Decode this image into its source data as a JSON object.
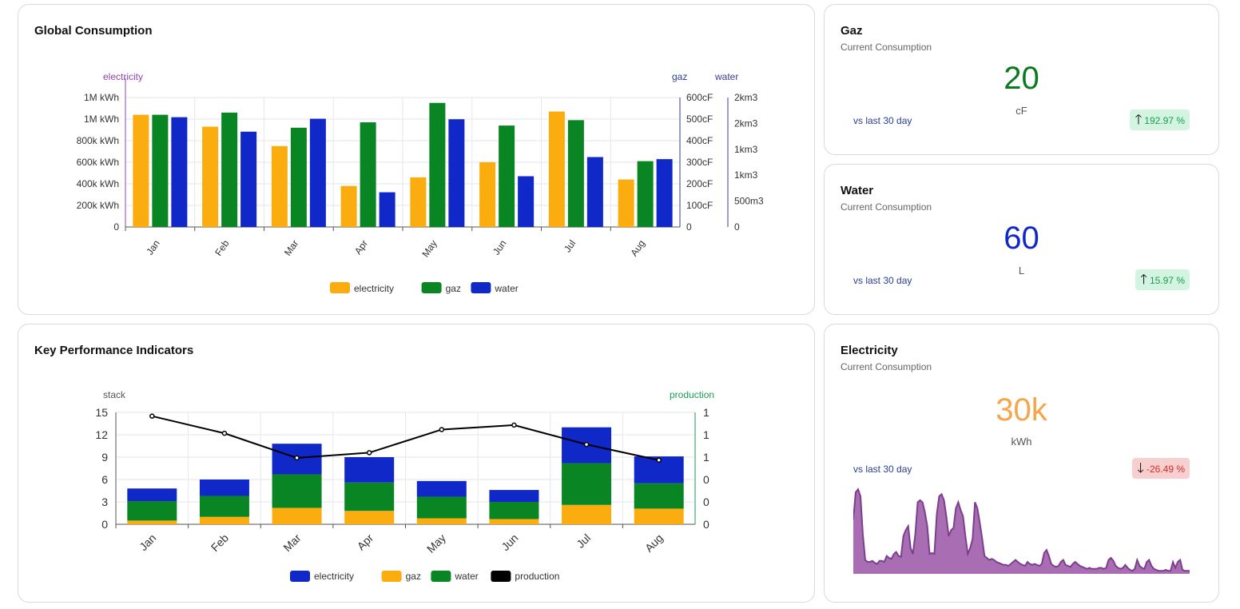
{
  "global_consumption": {
    "title": "Global Consumption",
    "axis_names": {
      "left": "electricity",
      "right1": "gaz",
      "right2": "water"
    },
    "legend": [
      {
        "label": "electricity",
        "color": "#fbac0f"
      },
      {
        "label": "gaz",
        "color": "#0a8524"
      },
      {
        "label": "water",
        "color": "#1128c8"
      }
    ]
  },
  "kpi_chart": {
    "title": "Key Performance Indicators",
    "axis_names": {
      "left": "stack",
      "right": "production"
    },
    "legend": [
      {
        "label": "electricity",
        "color": "#1128c8"
      },
      {
        "label": "gaz",
        "color": "#fbac0f"
      },
      {
        "label": "water",
        "color": "#0a8524"
      },
      {
        "label": "production",
        "color": "#000000"
      }
    ]
  },
  "gaz_card": {
    "title": "Gaz",
    "subtitle": "Current Consumption",
    "value": "20",
    "unit": "cF",
    "value_color": "#0a7a1f",
    "vs_label": "vs last 30 day",
    "change": "192.97 %",
    "trend": "up"
  },
  "water_card": {
    "title": "Water",
    "subtitle": "Current Consumption",
    "value": "60",
    "unit": "L",
    "value_color": "#1128c8",
    "vs_label": "vs last 30 day",
    "change": "15.97 %",
    "trend": "up"
  },
  "electricity_card": {
    "title": "Electricity",
    "subtitle": "Current Consumption",
    "value": "30k",
    "unit": "kWh",
    "value_color": "#f5a54a",
    "vs_label": "vs last 30 day",
    "change": "-26.49 %",
    "trend": "down",
    "sparkline_color": "#a86db3",
    "sparkline": [
      55,
      82,
      85,
      78,
      40,
      14,
      12,
      12,
      13,
      11,
      10,
      13,
      13,
      12,
      18,
      16,
      15,
      20,
      22,
      18,
      17,
      38,
      44,
      48,
      26,
      20,
      40,
      72,
      74,
      72,
      62,
      48,
      20,
      21,
      20,
      60,
      78,
      80,
      74,
      58,
      38,
      44,
      46,
      66,
      72,
      64,
      58,
      38,
      20,
      26,
      35,
      72,
      66,
      52,
      36,
      18,
      16,
      14,
      15,
      14,
      12,
      11,
      10,
      9,
      9,
      8,
      10,
      12,
      14,
      12,
      10,
      9,
      8,
      12,
      10,
      9,
      10,
      9,
      8,
      10,
      21,
      24,
      18,
      10,
      8,
      7,
      8,
      12,
      14,
      9,
      8,
      7,
      10,
      12,
      10,
      8,
      7,
      6,
      5,
      6,
      5,
      5,
      5,
      6,
      6,
      5,
      6,
      14,
      16,
      13,
      8,
      6,
      5,
      6,
      9,
      6,
      4,
      3,
      5,
      14,
      8,
      6,
      5,
      12,
      14,
      8,
      5,
      4,
      3,
      3,
      3,
      4,
      3,
      3,
      12,
      6,
      12,
      14,
      4,
      3,
      3,
      3
    ],
    "sparkline_max": 90
  },
  "chart_data": [
    {
      "type": "bar",
      "title": "Global Consumption",
      "categories": [
        "Jan",
        "Feb",
        "Mar",
        "Apr",
        "May",
        "Jun",
        "Jul",
        "Aug"
      ],
      "series": [
        {
          "name": "electricity",
          "axis": "left",
          "color": "#fbac0f",
          "values": [
            1040000,
            930000,
            750000,
            380000,
            460000,
            600000,
            1070000,
            440000
          ]
        },
        {
          "name": "gaz",
          "axis": "right1",
          "color": "#0a8524",
          "values": [
            520,
            530,
            460,
            485,
            575,
            470,
            495,
            305
          ]
        },
        {
          "name": "water",
          "axis": "right2",
          "color": "#1128c8",
          "values": [
            2120,
            1840,
            2090,
            670,
            2080,
            980,
            1350,
            1310
          ]
        }
      ],
      "y_axes": {
        "left": {
          "name": "electricity",
          "min": 0,
          "max": 1200000,
          "ticks": [
            "0",
            "200k kWh",
            "400k kWh",
            "600k kWh",
            "800k kWh",
            "1M kWh",
            "1M kWh"
          ],
          "color": "#8e44ad"
        },
        "right1": {
          "name": "gaz",
          "min": 0,
          "max": 600,
          "ticks": [
            "0",
            "100cF",
            "200cF",
            "300cF",
            "400cF",
            "500cF",
            "600cF"
          ],
          "color": "#2b3d8f"
        },
        "right2": {
          "name": "water",
          "min": 0,
          "max": 2500,
          "ticks": [
            "0",
            "500m3",
            "1km3",
            "1km3",
            "2km3",
            "2km3"
          ],
          "color": "#3b3b8f"
        }
      },
      "grid": true,
      "legend_position": "bottom"
    },
    {
      "type": "bar",
      "stacked": true,
      "title": "Key Performance Indicators",
      "categories": [
        "Jan",
        "Feb",
        "Mar",
        "Apr",
        "May",
        "Jun",
        "Jul",
        "Aug"
      ],
      "series": [
        {
          "name": "gaz",
          "stack": "stack",
          "color": "#fbac0f",
          "values": [
            0.5,
            1.0,
            2.2,
            1.8,
            0.8,
            0.7,
            2.6,
            2.1
          ]
        },
        {
          "name": "water",
          "stack": "stack",
          "color": "#0a8524",
          "values": [
            2.6,
            2.8,
            4.5,
            3.8,
            2.9,
            2.3,
            5.6,
            3.4
          ]
        },
        {
          "name": "electricity",
          "stack": "stack",
          "color": "#1128c8",
          "values": [
            1.7,
            2.2,
            4.1,
            3.4,
            2.1,
            1.6,
            4.8,
            3.6
          ]
        },
        {
          "name": "production",
          "type": "line",
          "axis": "right",
          "color": "#000000",
          "values": [
            1.45,
            1.22,
            0.89,
            0.96,
            1.27,
            1.33,
            1.07,
            0.86
          ]
        }
      ],
      "y_axes": {
        "left": {
          "name": "stack",
          "min": 0,
          "max": 15,
          "ticks": [
            "0",
            "3",
            "6",
            "9",
            "12",
            "15"
          ]
        },
        "right": {
          "name": "production",
          "min": 0,
          "max": 1.5,
          "ticks": [
            "0",
            "0",
            "0",
            "1",
            "1",
            "1"
          ],
          "color": "#1a9e54"
        }
      },
      "grid": true,
      "legend_position": "bottom"
    }
  ]
}
